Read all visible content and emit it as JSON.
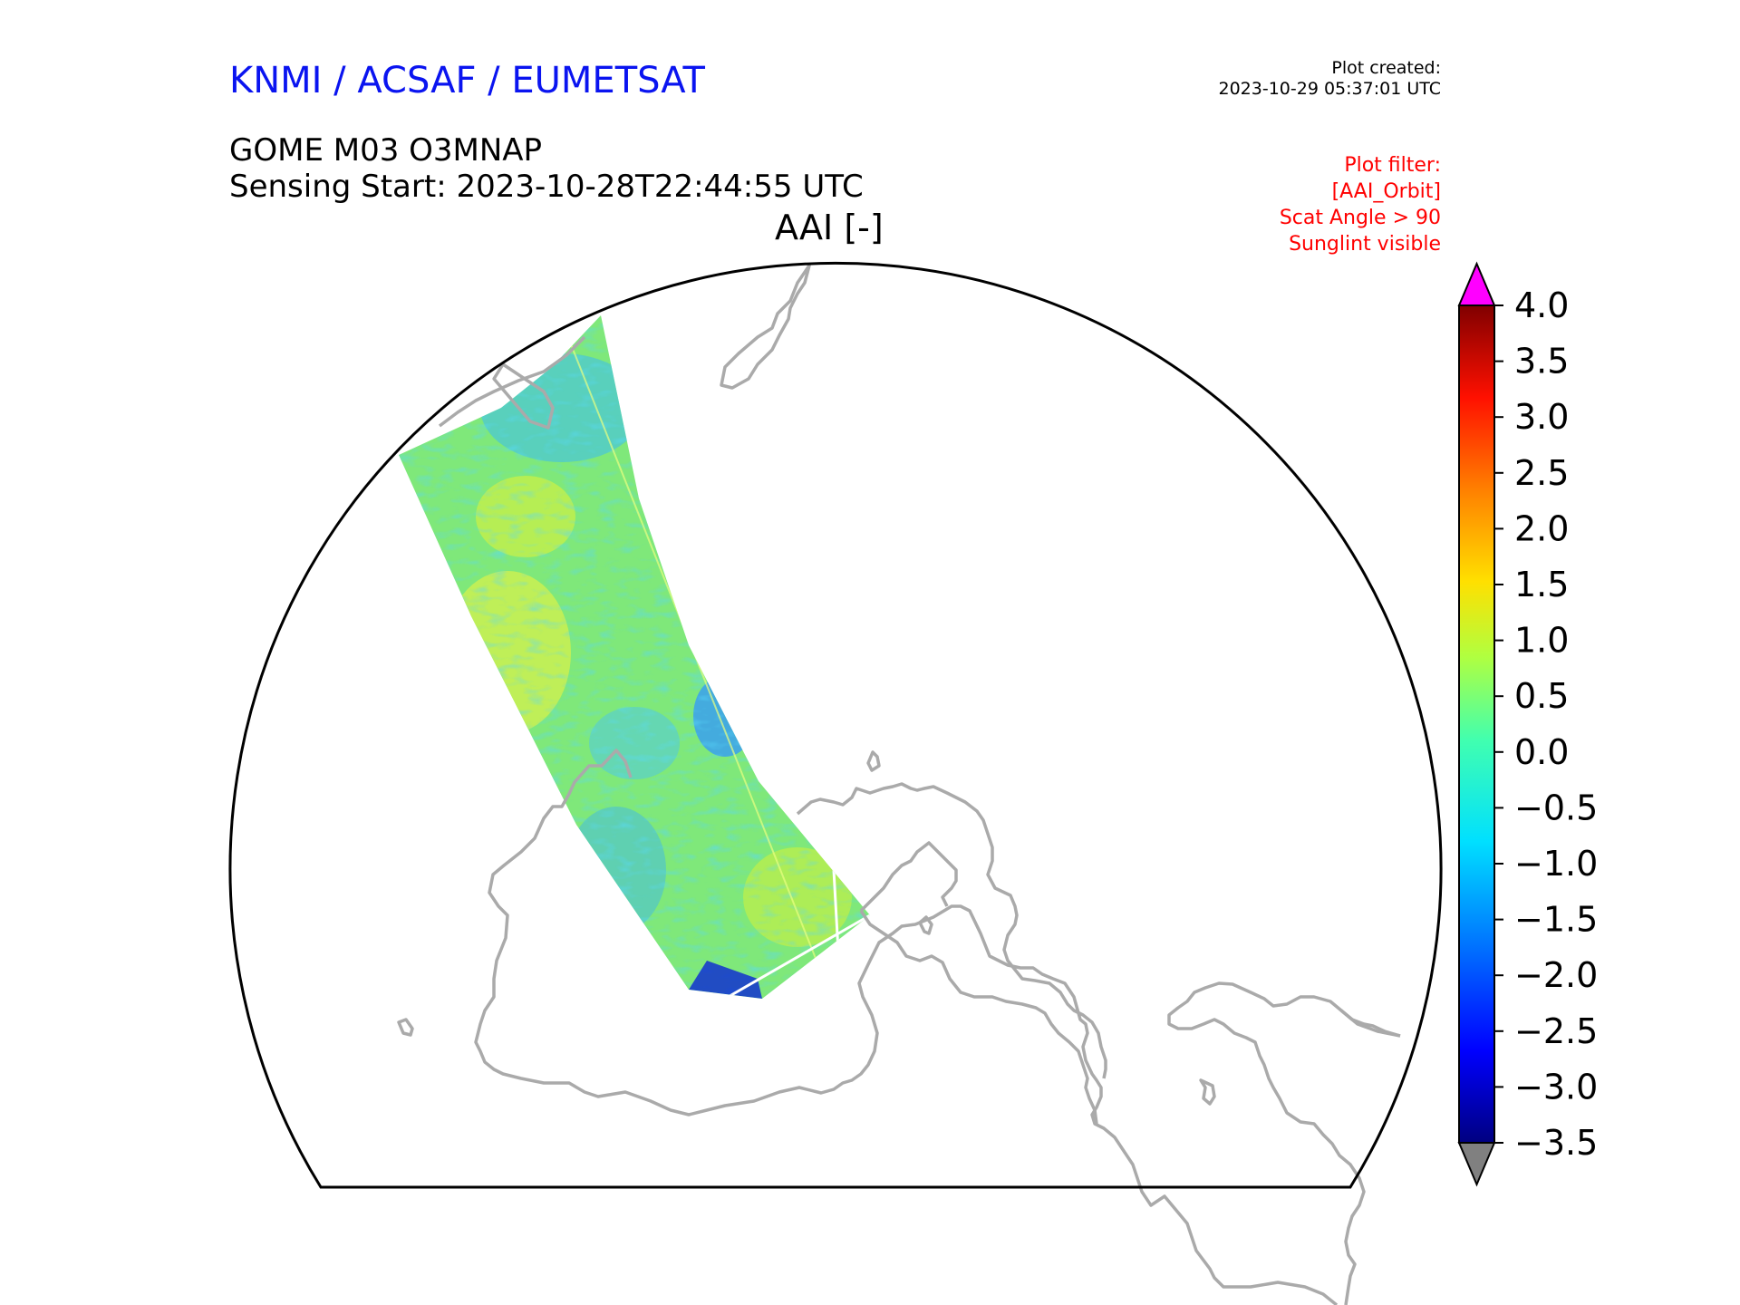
{
  "header": {
    "organization": "KNMI / ACSAF / EUMETSAT",
    "plot_created_label": "Plot created:",
    "plot_created_time": "2023-10-29 05:37:01 UTC",
    "product": "GOME M03 O3MNAP",
    "sensing_start": "Sensing Start: 2023-10-28T22:44:55 UTC",
    "variable": "AAI [-]"
  },
  "filter": {
    "title": "Plot filter:",
    "lines": [
      "[AAI_Orbit]",
      "Scat Angle > 90",
      "Sunglint visible"
    ]
  },
  "colorbar": {
    "min": -3.5,
    "max": 4.0,
    "ticks": [
      "4.0",
      "3.5",
      "3.0",
      "2.5",
      "2.0",
      "1.5",
      "1.0",
      "0.5",
      "0.0",
      "−0.5",
      "−1.0",
      "−1.5",
      "−2.0",
      "−2.5",
      "−3.0",
      "−3.5"
    ],
    "over_color": "#ff00ff",
    "under_color": "#808080",
    "stops": [
      "#000080",
      "#0000ff",
      "#0080ff",
      "#00e0ff",
      "#40ffb0",
      "#b0ff40",
      "#ffe000",
      "#ff8000",
      "#ff1000",
      "#800000"
    ]
  },
  "map": {
    "coastline_color": "#aaaaaa",
    "swath_colors": {
      "dominant": "#7fe87a",
      "bright": "#d8f040",
      "cool": "#30c8e8",
      "low": "#1030d0"
    }
  }
}
